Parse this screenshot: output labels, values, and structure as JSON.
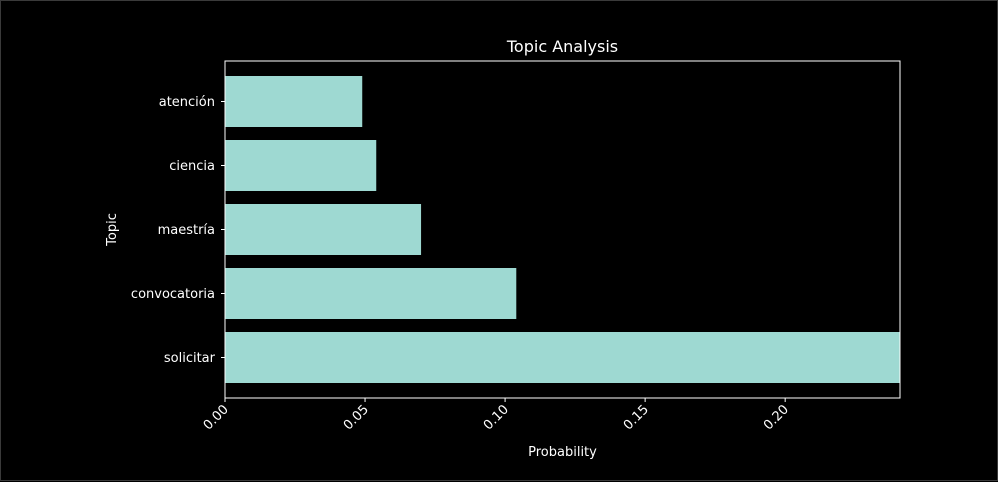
{
  "chart_data": {
    "type": "bar",
    "orientation": "horizontal",
    "title": "Topic Analysis",
    "xlabel": "Probability",
    "ylabel": "Topic",
    "categories": [
      "solicitar",
      "convocatoria",
      "maestría",
      "ciencia",
      "atención"
    ],
    "values": [
      0.241,
      0.104,
      0.07,
      0.054,
      0.049
    ],
    "xlim": [
      0,
      0.241
    ],
    "xticks": [
      0.0,
      0.05,
      0.1,
      0.15,
      0.2
    ],
    "xtick_labels": [
      "0.00",
      "0.05",
      "0.10",
      "0.15",
      "0.20"
    ],
    "grid": false,
    "bar_color": "#9ed9d2",
    "background": "#000000",
    "text_color": "#ffffff"
  }
}
